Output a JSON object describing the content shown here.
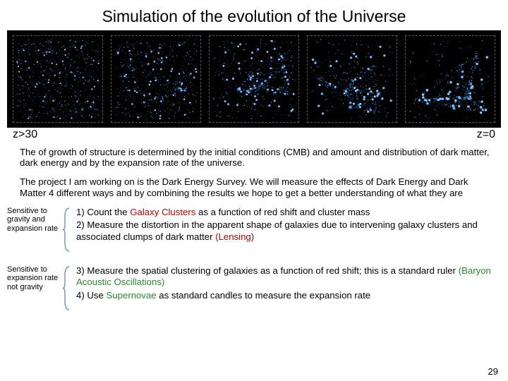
{
  "title": "Simulation of the evolution of the Universe",
  "z_left": "z>30",
  "z_right": "z=0",
  "para1": "The of growth of structure is determined by the initial conditions (CMB) and amount and distribution of dark matter, dark energy and by the expansion rate of the universe.",
  "para2": "The project I am working on is the Dark Energy Survey.  We will measure the effects of Dark Energy and Dark Matter 4 different ways and by combining the results we hope to get a better understanding of what they are",
  "group1_label": "Sensitive to gravity and expansion rate",
  "group2_label": "Sensitive to expansion rate not gravity",
  "m1_a": "1) Count the ",
  "m1_b": "Galaxy Clusters",
  "m1_c": " as a function of red shift and cluster mass",
  "m2_a": "2) Measure the distortion in the apparent shape of galaxies due to intervening galaxy clusters and associated clumps of dark matter ",
  "m2_b": "(Lensing)",
  "m3_a": "3) Measure the spatial clustering of galaxies as a function of red shift; this is a standard ruler ",
  "m3_b": "(Baryon Acoustic Oscillations)",
  "m4_a": "4) Use ",
  "m4_b": "Supernovae",
  "m4_c": " as standard candles to measure the expansion rate",
  "page_number": "29",
  "sim": {
    "panel_count": 5,
    "bg": "#000000",
    "point_color_bright": "#7ec8ff",
    "point_color_mid": "#3a8ad6",
    "point_color_dim": "#174a7a",
    "clump_progression": [
      0.0,
      0.25,
      0.5,
      0.75,
      1.0
    ]
  },
  "colors": {
    "red": "#c00000",
    "green": "#2e8b2e",
    "bracket": "#7a9ec9"
  }
}
